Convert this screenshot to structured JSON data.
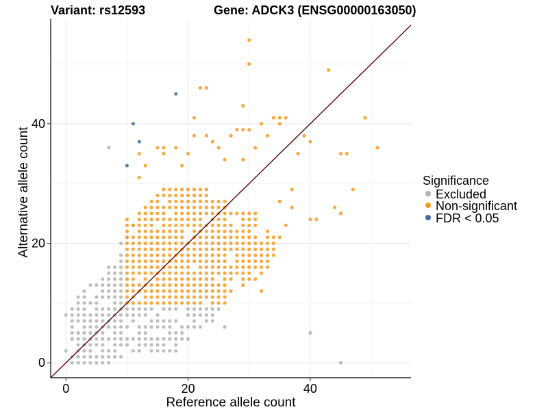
{
  "chart_data": {
    "type": "scatter",
    "title_left": "Variant: rs12593",
    "title_right": "Gene: ADCK3 (ENSG00000163050)",
    "xlabel": "Reference allele count",
    "ylabel": "Alternative allele count",
    "xlim": [
      -2.5,
      56.5
    ],
    "ylim": [
      -2.5,
      57.5
    ],
    "x_ticks": [
      0,
      20,
      40
    ],
    "y_ticks": [
      0,
      20,
      40
    ],
    "grid": true,
    "reference_line": {
      "type": "identity",
      "color": "#8b0000",
      "style": "dashed"
    },
    "legend": {
      "title": "Significance",
      "placement": "right",
      "entries": [
        {
          "label": "Excluded",
          "color": "#b3b3b3"
        },
        {
          "label": "Non-significant",
          "color": "#f59a1f"
        },
        {
          "label": "FDR < 0.05",
          "color": "#3e6f9e"
        }
      ]
    },
    "series": [
      {
        "name": "Excluded",
        "color": "#b3b3b3",
        "regions": [
          {
            "x": [
              1,
              9
            ],
            "y_from_x_offset": -6,
            "y_to": 16,
            "step": 1
          },
          {
            "x": [
              10,
              25
            ],
            "y": [
              2,
              9
            ],
            "step": 1,
            "below_diagonal": true
          }
        ],
        "points": [
          [
            0,
            2
          ],
          [
            0,
            8
          ],
          [
            1,
            7
          ],
          [
            1,
            8
          ],
          [
            2,
            2
          ],
          [
            2,
            4
          ],
          [
            2,
            5
          ],
          [
            3,
            1
          ],
          [
            3,
            5
          ],
          [
            4,
            3
          ],
          [
            5,
            1
          ],
          [
            6,
            1
          ],
          [
            6,
            2
          ],
          [
            7,
            0
          ],
          [
            7,
            36
          ],
          [
            8,
            1
          ],
          [
            9,
            1
          ],
          [
            9,
            18
          ],
          [
            9,
            20
          ],
          [
            10,
            21
          ],
          [
            11,
            23
          ],
          [
            12,
            4
          ],
          [
            13,
            3
          ],
          [
            14,
            2
          ],
          [
            15,
            3
          ],
          [
            16,
            4
          ],
          [
            17,
            5
          ],
          [
            19,
            4
          ],
          [
            20,
            8
          ],
          [
            21,
            7
          ],
          [
            22,
            8
          ],
          [
            23,
            9
          ],
          [
            24,
            7
          ],
          [
            26,
            6
          ],
          [
            40,
            5
          ],
          [
            45,
            0
          ]
        ]
      },
      {
        "name": "Non-significant",
        "color": "#f59a1f",
        "regions": [
          {
            "x": [
              10,
              26
            ],
            "y": [
              10,
              29
            ],
            "step": 1,
            "trimmed": true
          },
          {
            "x": [
              22,
              34
            ],
            "y": [
              10,
              25
            ],
            "step": 1,
            "trimmed": true
          }
        ],
        "points": [
          [
            12,
            31
          ],
          [
            12,
            35
          ],
          [
            13,
            33
          ],
          [
            15,
            36
          ],
          [
            16,
            36
          ],
          [
            16,
            35
          ],
          [
            18,
            36
          ],
          [
            19,
            33
          ],
          [
            20,
            35
          ],
          [
            21,
            38
          ],
          [
            21,
            41
          ],
          [
            22,
            46
          ],
          [
            23,
            46
          ],
          [
            23,
            38
          ],
          [
            24,
            37
          ],
          [
            25,
            36
          ],
          [
            26,
            34
          ],
          [
            27,
            38
          ],
          [
            28,
            39
          ],
          [
            29,
            39
          ],
          [
            29,
            34
          ],
          [
            30,
            54
          ],
          [
            30,
            50
          ],
          [
            30,
            39
          ],
          [
            29,
            43
          ],
          [
            31,
            36
          ],
          [
            32,
            40
          ],
          [
            33,
            38
          ],
          [
            34,
            41
          ],
          [
            35,
            41
          ],
          [
            35,
            40
          ],
          [
            36,
            41
          ],
          [
            37,
            29
          ],
          [
            37,
            26
          ],
          [
            38,
            35
          ],
          [
            39,
            38
          ],
          [
            40,
            37
          ],
          [
            40,
            24
          ],
          [
            41,
            24
          ],
          [
            43,
            49
          ],
          [
            44,
            26
          ],
          [
            45,
            25
          ],
          [
            45,
            35
          ],
          [
            46,
            35
          ],
          [
            47,
            29
          ],
          [
            49,
            41
          ],
          [
            51,
            36
          ],
          [
            28,
            21
          ],
          [
            29,
            17
          ],
          [
            30,
            15
          ],
          [
            31,
            14
          ],
          [
            32,
            12
          ],
          [
            33,
            22
          ],
          [
            34,
            20
          ],
          [
            34,
            18
          ],
          [
            35,
            21
          ],
          [
            35,
            27
          ],
          [
            36,
            23
          ]
        ]
      },
      {
        "name": "FDR < 0.05",
        "color": "#3e6f9e",
        "points": [
          [
            10,
            33
          ],
          [
            11,
            40
          ],
          [
            12,
            37
          ],
          [
            18,
            45
          ]
        ]
      }
    ]
  }
}
